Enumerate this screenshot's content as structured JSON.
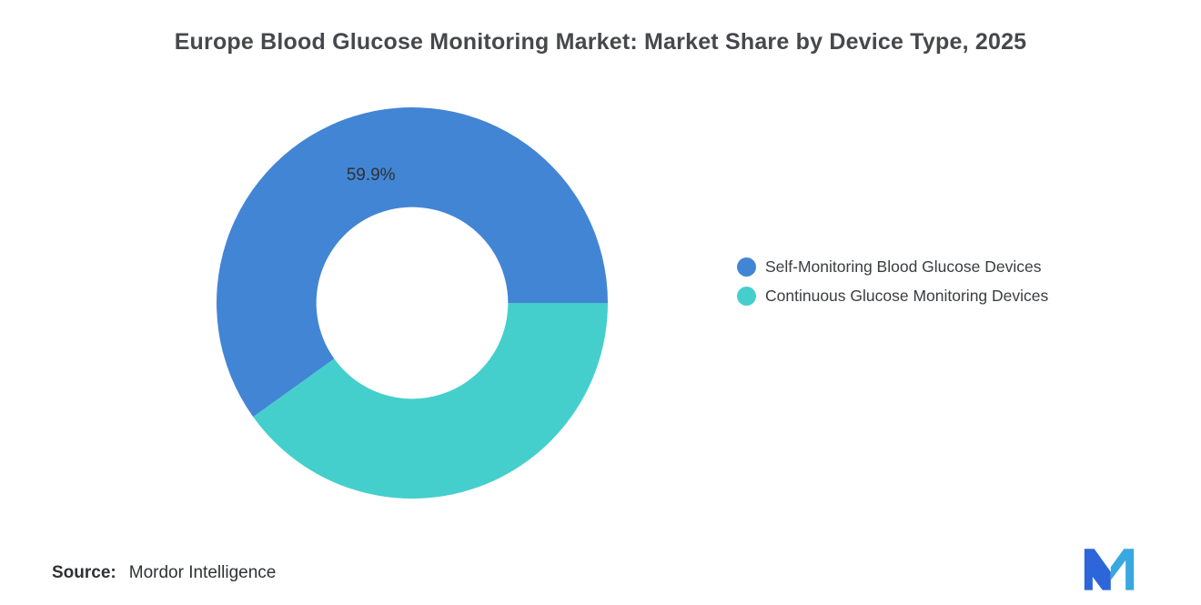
{
  "title": "Europe Blood Glucose Monitoring Market: Market Share by Device Type, 2025",
  "chart_data": {
    "type": "pie",
    "subtype": "donut",
    "title": "Europe Blood Glucose Monitoring Market: Market Share by Device Type, 2025",
    "slices": [
      {
        "label": "Self-Monitoring Blood Glucose Devices",
        "value": 59.9,
        "data_label": "59.9%",
        "color": "#4285d4"
      },
      {
        "label": "Continuous Glucose Monitoring Devices",
        "value": 40.1,
        "data_label": "",
        "color": "#45cfcc"
      }
    ],
    "start_angle_deg": 0,
    "direction": "counterclockwise",
    "inner_radius_ratio": 0.49,
    "legend_position": "right",
    "grid": false
  },
  "source": {
    "label": "Source:",
    "text": "Mordor Intelligence"
  },
  "logo": {
    "name": "mordor-intelligence-logo",
    "color_dark": "#2d66d9",
    "color_light": "#38a8e0"
  }
}
